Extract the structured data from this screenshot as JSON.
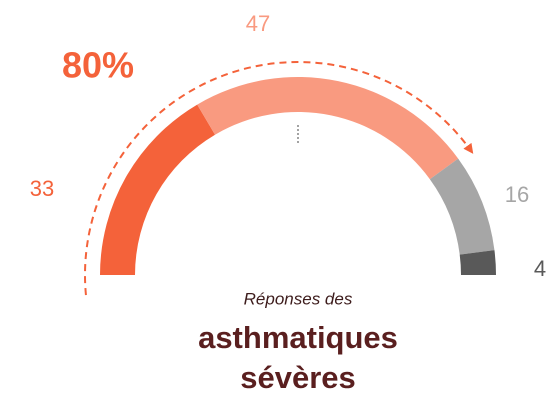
{
  "chart_data": {
    "type": "gauge",
    "values": [
      33,
      47,
      16,
      4
    ],
    "colors": [
      "#f4623a",
      "#f99a80",
      "#a6a6a6",
      "#595959"
    ],
    "annotation": "80%",
    "subtitle": "Réponses des",
    "title": [
      "asthmatiques",
      "sévères"
    ]
  }
}
